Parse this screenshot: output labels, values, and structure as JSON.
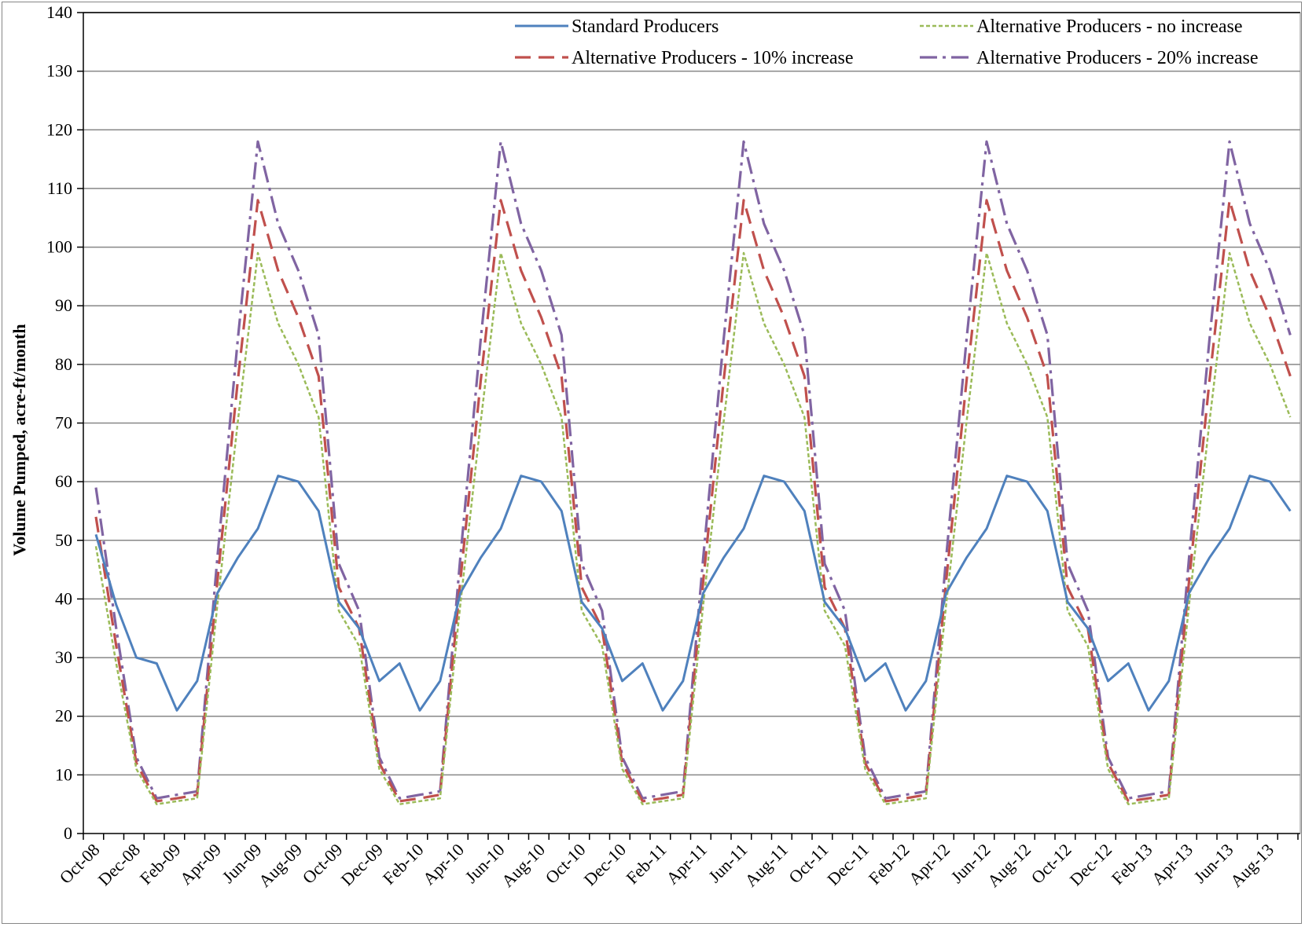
{
  "chart_data": {
    "type": "line",
    "title": "",
    "xlabel": "",
    "ylabel": "Volume Pumped, acre-ft/month",
    "ylim": [
      0,
      140
    ],
    "y_ticks": [
      0,
      10,
      20,
      30,
      40,
      50,
      60,
      70,
      80,
      90,
      100,
      110,
      120,
      130,
      140
    ],
    "grid": "horizontal",
    "legend_position": "top-right",
    "x": [
      "Oct-08",
      "Nov-08",
      "Dec-08",
      "Jan-09",
      "Feb-09",
      "Mar-09",
      "Apr-09",
      "May-09",
      "Jun-09",
      "Jul-09",
      "Aug-09",
      "Sep-09",
      "Oct-09",
      "Nov-09",
      "Dec-09",
      "Jan-10",
      "Feb-10",
      "Mar-10",
      "Apr-10",
      "May-10",
      "Jun-10",
      "Jul-10",
      "Aug-10",
      "Sep-10",
      "Oct-10",
      "Nov-10",
      "Dec-10",
      "Jan-11",
      "Feb-11",
      "Mar-11",
      "Apr-11",
      "May-11",
      "Jun-11",
      "Jul-11",
      "Aug-11",
      "Sep-11",
      "Oct-11",
      "Nov-11",
      "Dec-11",
      "Jan-12",
      "Feb-12",
      "Mar-12",
      "Apr-12",
      "May-12",
      "Jun-12",
      "Jul-12",
      "Aug-12",
      "Sep-12",
      "Oct-12",
      "Nov-12",
      "Dec-12",
      "Jan-13",
      "Feb-13",
      "Mar-13",
      "Apr-13",
      "May-13",
      "Jun-13",
      "Jul-13",
      "Aug-13",
      "Sep-13"
    ],
    "x_tick_labels": [
      "Oct-08",
      "Dec-08",
      "Feb-09",
      "Apr-09",
      "Jun-09",
      "Aug-09",
      "Oct-09",
      "Dec-09",
      "Feb-10",
      "Apr-10",
      "Jun-10",
      "Aug-10",
      "Oct-10",
      "Dec-10",
      "Feb-11",
      "Apr-11",
      "Jun-11",
      "Aug-11",
      "Oct-11",
      "Dec-11",
      "Feb-12",
      "Apr-12",
      "Jun-12",
      "Aug-12",
      "Oct-12",
      "Dec-12",
      "Feb-13",
      "Apr-13",
      "Jun-13",
      "Aug-13"
    ],
    "series": [
      {
        "name": "Standard Producers",
        "color": "#4F81BD",
        "style": "solid",
        "values": [
          51,
          39,
          30,
          29,
          21,
          26,
          41,
          47,
          52,
          61,
          60,
          55,
          39.5,
          35,
          26,
          29,
          21,
          26,
          41,
          47,
          52,
          61,
          60,
          55,
          39.5,
          35,
          26,
          29,
          21,
          26,
          41,
          47,
          52,
          61,
          60,
          55,
          39.5,
          35,
          26,
          29,
          21,
          26,
          41,
          47,
          52,
          61,
          60,
          55,
          39.5,
          35,
          26,
          29,
          21,
          26,
          41,
          47,
          52,
          61,
          60,
          55
        ]
      },
      {
        "name": "Alternative Producers - no increase",
        "color": "#9BBB59",
        "style": "dotted",
        "values": [
          49,
          29,
          11,
          5,
          5.5,
          6,
          39,
          70,
          99,
          87,
          80,
          71,
          38,
          32,
          11,
          5,
          5.5,
          6,
          39,
          70,
          99,
          87,
          80,
          71,
          38,
          32,
          11,
          5,
          5.5,
          6,
          39,
          70,
          99,
          87,
          80,
          71,
          38,
          32,
          11,
          5,
          5.5,
          6,
          39,
          70,
          99,
          87,
          80,
          71,
          38,
          32,
          11,
          5,
          5.5,
          6,
          39,
          70,
          99,
          87,
          80,
          71
        ]
      },
      {
        "name": "Alternative Producers - 10% increase",
        "color": "#C0504D",
        "style": "dashed",
        "values": [
          54,
          32,
          12,
          5.5,
          6,
          6.6,
          43,
          77,
          108,
          96,
          88,
          78,
          42,
          35,
          12,
          5.5,
          6,
          6.6,
          43,
          77,
          108,
          96,
          88,
          78,
          42,
          35,
          12,
          5.5,
          6,
          6.6,
          43,
          77,
          108,
          96,
          88,
          78,
          42,
          35,
          12,
          5.5,
          6,
          6.6,
          43,
          77,
          108,
          96,
          88,
          78,
          42,
          35,
          12,
          5.5,
          6,
          6.6,
          43,
          77,
          108,
          96,
          88,
          78
        ]
      },
      {
        "name": "Alternative Producers - 20% increase",
        "color": "#8064A2",
        "style": "dashdot",
        "values": [
          59,
          35,
          13,
          6,
          6.6,
          7.2,
          47,
          84,
          118,
          104,
          96,
          85,
          46,
          38,
          13,
          6,
          6.6,
          7.2,
          47,
          84,
          118,
          104,
          96,
          85,
          46,
          38,
          13,
          6,
          6.6,
          7.2,
          47,
          84,
          118,
          104,
          96,
          85,
          46,
          38,
          13,
          6,
          6.6,
          7.2,
          47,
          84,
          118,
          104,
          96,
          85,
          46,
          38,
          13,
          6,
          6.6,
          7.2,
          47,
          84,
          118,
          104,
          96,
          85
        ]
      }
    ]
  }
}
